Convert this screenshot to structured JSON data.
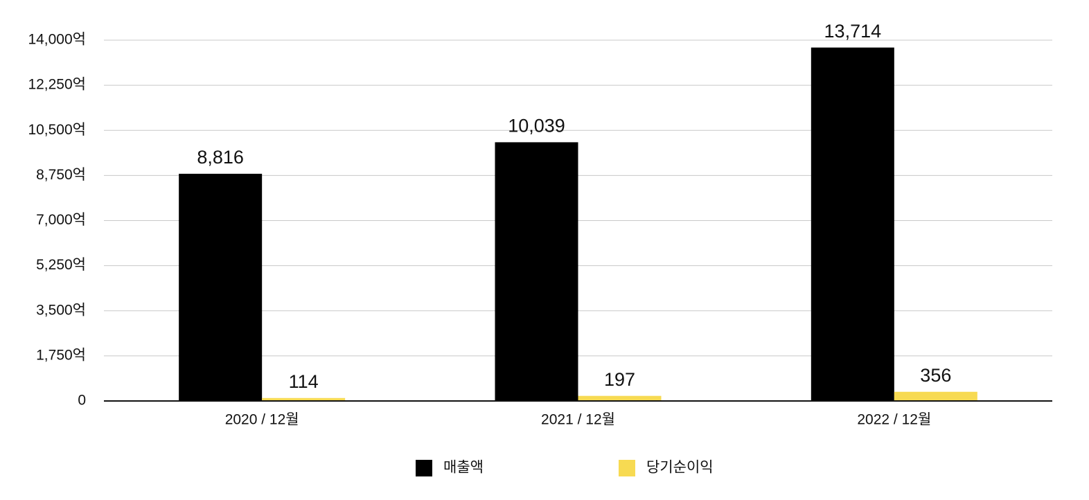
{
  "chart_data": {
    "type": "bar",
    "categories": [
      "2020 / 12월",
      "2021 / 12월",
      "2022 / 12월"
    ],
    "series": [
      {
        "name": "매출액",
        "color": "#000000",
        "values": [
          8816,
          10039,
          13714
        ],
        "value_labels": [
          "8,816",
          "10,039",
          "13,714"
        ]
      },
      {
        "name": "당기순이익",
        "color": "#f7da52",
        "values": [
          114,
          197,
          356
        ]
      }
    ],
    "ylim": [
      0,
      14000
    ],
    "yticks": [
      0,
      {
        "value": 1750,
        "label": "1,750억"
      },
      {
        "value": 3500,
        "label": "3,500억"
      },
      {
        "value": 5250,
        "label": "5,250억"
      },
      {
        "value": 7000,
        "label": "7,000억"
      },
      {
        "value": 8750,
        "label": "8,750억"
      },
      {
        "value": 10500,
        "label": "10,500억"
      },
      {
        "value": 12250,
        "label": "12,250억"
      },
      {
        "value": 14000,
        "label": "14,000억"
      }
    ],
    "grid": true
  }
}
